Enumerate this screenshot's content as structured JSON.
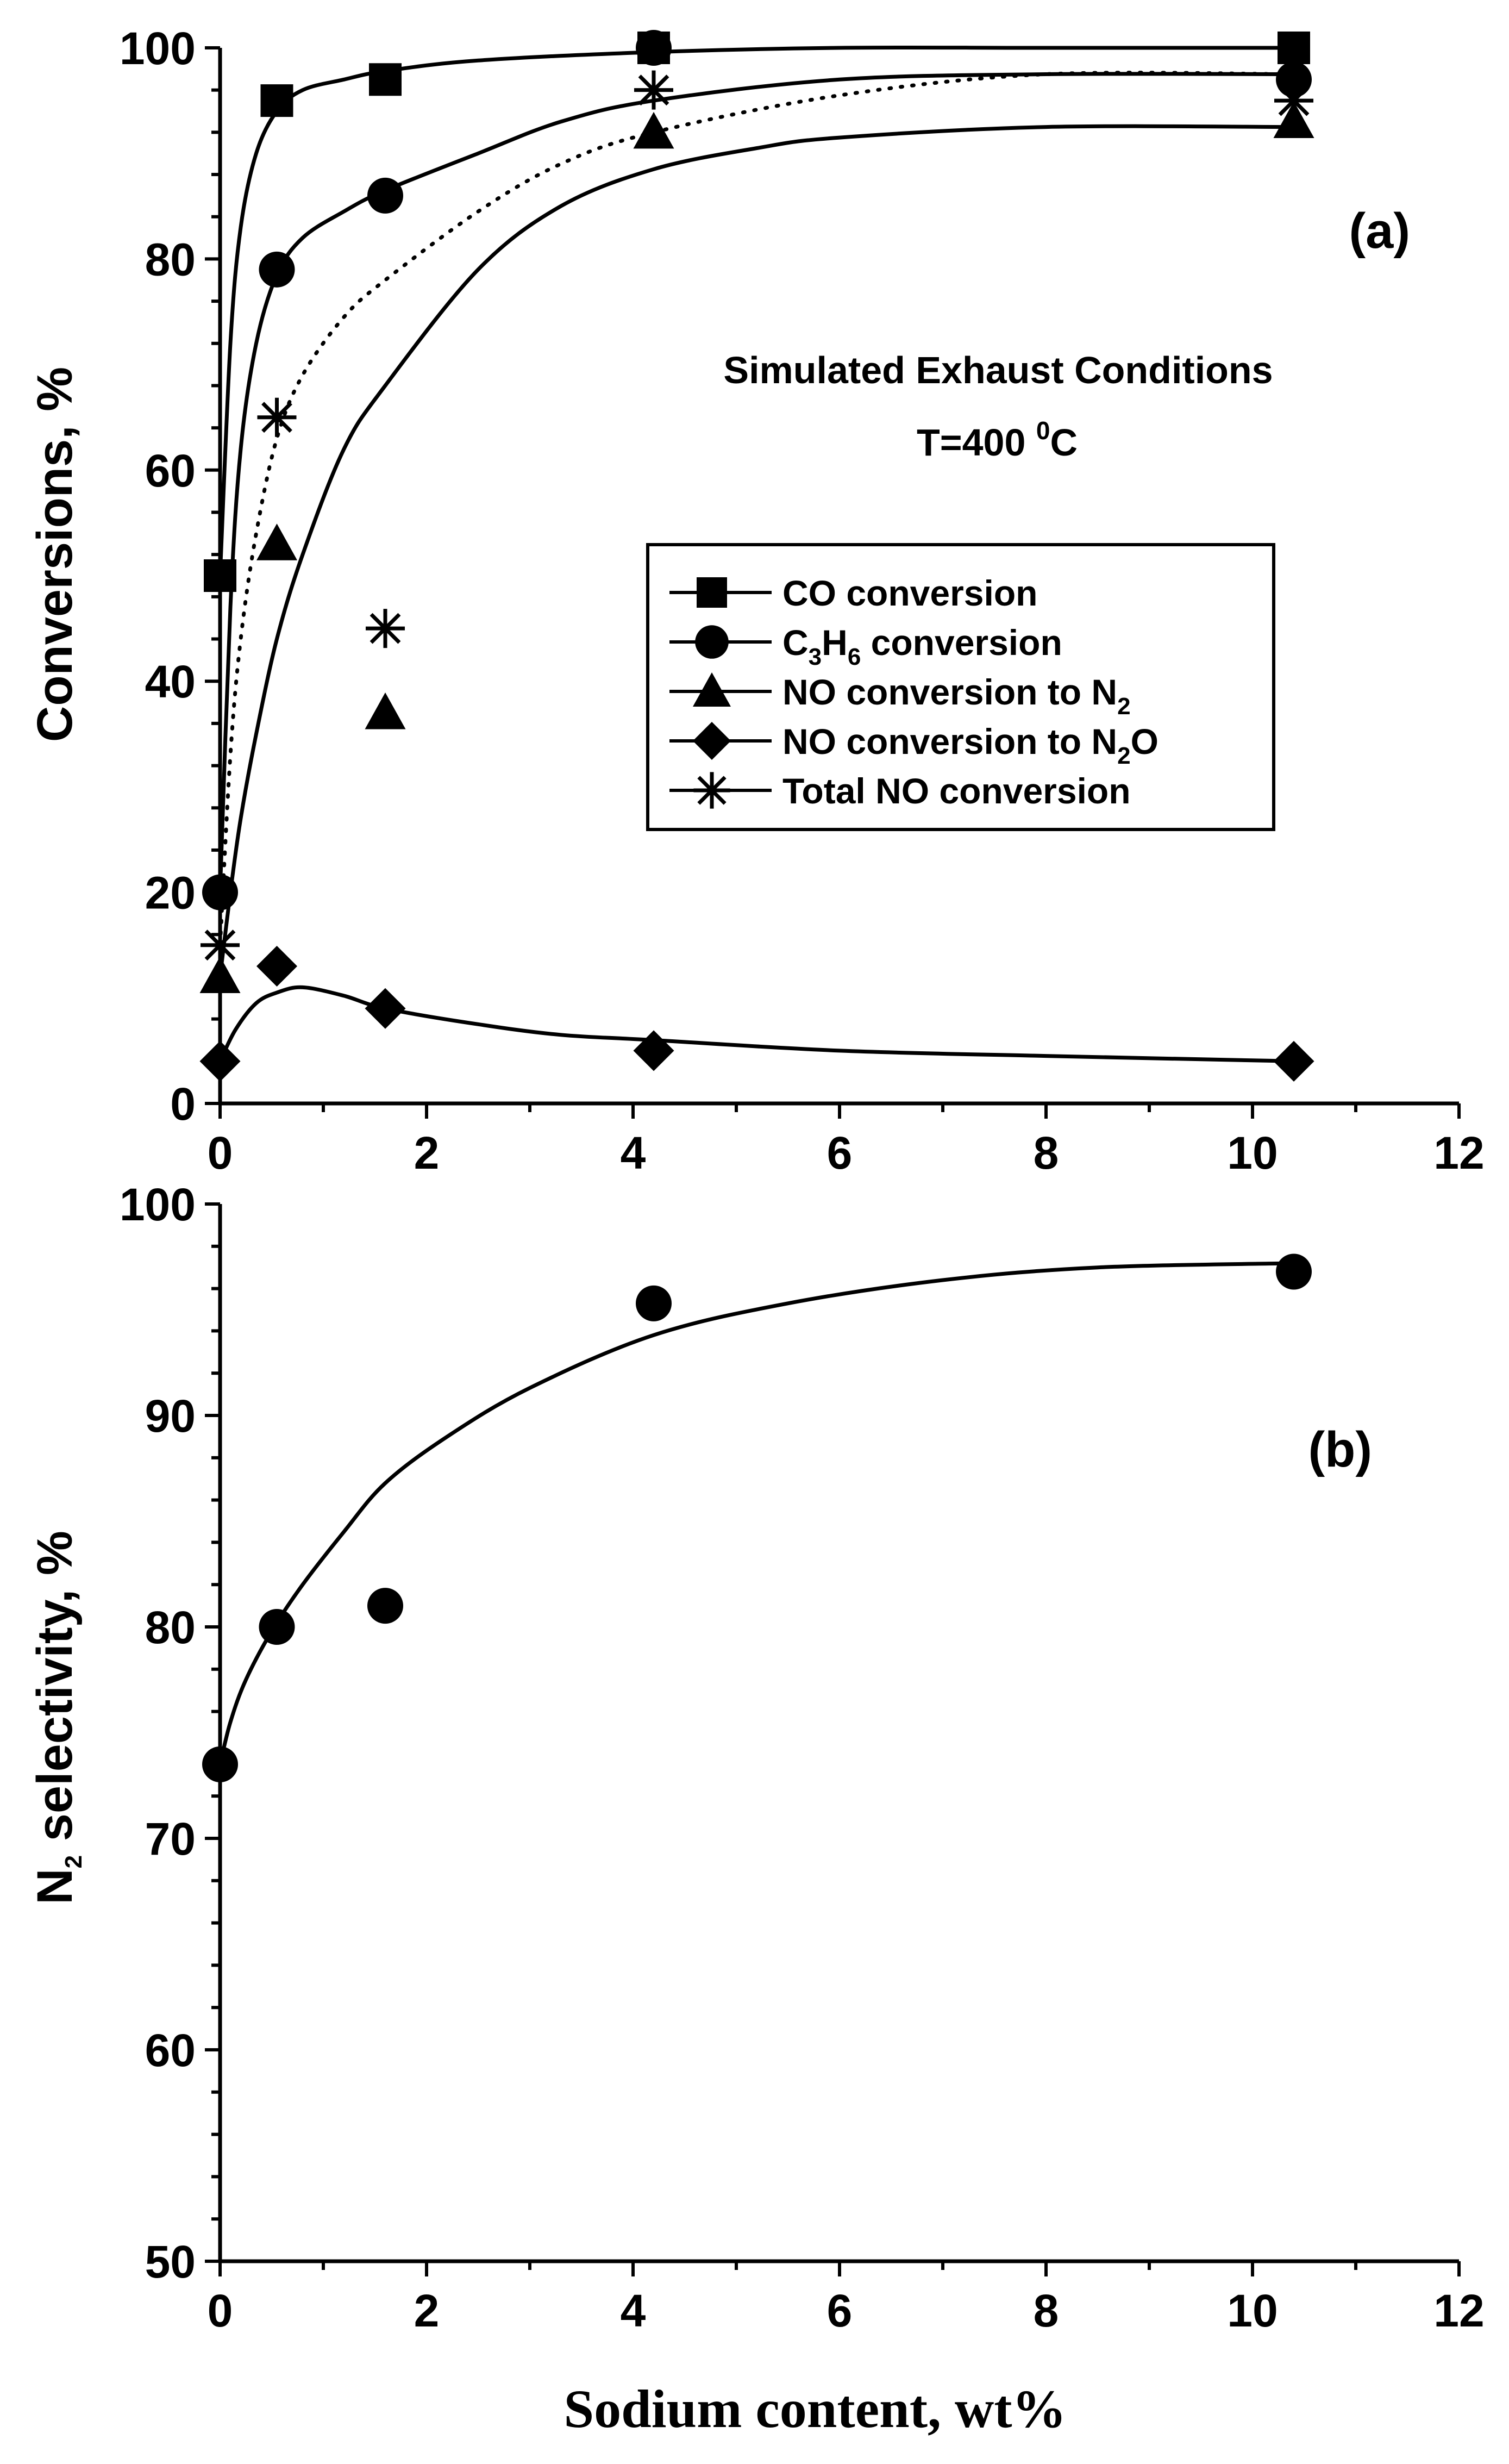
{
  "chart_data": [
    {
      "panel": "a",
      "type": "scatter",
      "panel_label": "(a)",
      "annotation_line1": "Simulated Exhaust Conditions",
      "annotation_line2_prefix": "T=400 ",
      "annotation_line2_sup": "0",
      "annotation_line2_suffix": "C",
      "ylabel": "Conversions, %",
      "xlim": [
        0,
        12
      ],
      "ylim": [
        0,
        100
      ],
      "xticks": [
        0,
        2,
        4,
        6,
        8,
        10,
        12
      ],
      "yticks": [
        0,
        20,
        40,
        60,
        80,
        100
      ],
      "legend": [
        {
          "marker": "square",
          "parts": [
            [
              "CO conversion",
              ""
            ]
          ]
        },
        {
          "marker": "circle",
          "parts": [
            [
              "C",
              ""
            ],
            [
              "3",
              "sub"
            ],
            [
              "H",
              ""
            ],
            [
              "6",
              "sub"
            ],
            [
              " conversion",
              ""
            ]
          ]
        },
        {
          "marker": "triangle",
          "parts": [
            [
              "NO conversion to N",
              ""
            ],
            [
              "2",
              "sub"
            ]
          ]
        },
        {
          "marker": "diamond",
          "parts": [
            [
              "NO conversion to N",
              ""
            ],
            [
              "2",
              "sub"
            ],
            [
              "O",
              ""
            ]
          ]
        },
        {
          "marker": "asterisk",
          "parts": [
            [
              "Total NO conversion",
              ""
            ]
          ]
        }
      ],
      "series": [
        {
          "name": "CO conversion",
          "marker": "square",
          "x": [
            0,
            0.55,
            1.6,
            4.2,
            10.4
          ],
          "y": [
            50,
            95,
            97,
            100,
            100
          ]
        },
        {
          "name": "C3H6 conversion",
          "marker": "circle",
          "x": [
            0,
            0.55,
            1.6,
            4.2,
            10.4
          ],
          "y": [
            20,
            79,
            86,
            100,
            97
          ]
        },
        {
          "name": "NO conversion to N2",
          "marker": "triangle",
          "x": [
            0,
            0.55,
            1.6,
            4.2,
            10.4
          ],
          "y": [
            12,
            53,
            37,
            92,
            93
          ]
        },
        {
          "name": "NO conversion to N2O",
          "marker": "diamond",
          "x": [
            0,
            0.55,
            1.6,
            4.2,
            10.4
          ],
          "y": [
            4,
            13,
            9,
            5,
            4
          ]
        },
        {
          "name": "Total NO conversion",
          "marker": "asterisk",
          "x": [
            0,
            0.55,
            1.6,
            4.2,
            10.4
          ],
          "y": [
            15,
            65,
            45,
            96,
            95
          ]
        }
      ],
      "fit_curves": [
        {
          "name": "CO fit",
          "style": "solid",
          "x": [
            0,
            0.1,
            0.2,
            0.35,
            0.55,
            0.8,
            1.2,
            1.6,
            2.5,
            4.2,
            6,
            8,
            10.4
          ],
          "y": [
            50,
            72,
            83,
            90,
            94,
            96,
            97,
            97.8,
            98.8,
            99.6,
            100,
            100,
            100
          ]
        },
        {
          "name": "C3H6 fit",
          "style": "solid",
          "x": [
            0,
            0.1,
            0.2,
            0.35,
            0.55,
            0.8,
            1.2,
            1.6,
            2.5,
            3.3,
            4.2,
            6,
            8,
            10.4
          ],
          "y": [
            20,
            47,
            62,
            72,
            78.5,
            82,
            84.5,
            86.5,
            90,
            93,
            95,
            97,
            97.5,
            97.5
          ]
        },
        {
          "name": "NO to N2 fit",
          "style": "solid",
          "x": [
            0,
            0.1,
            0.2,
            0.35,
            0.55,
            0.8,
            1.2,
            1.6,
            2.5,
            3.3,
            4.2,
            5.2,
            6,
            8,
            10.4
          ],
          "y": [
            12,
            20,
            27,
            35,
            44,
            52,
            62,
            68,
            79,
            85,
            88.5,
            90.5,
            91.5,
            92.5,
            92.5
          ]
        },
        {
          "name": "Total NO fit",
          "style": "dotted",
          "x": [
            0,
            0.1,
            0.2,
            0.35,
            0.55,
            0.8,
            1.2,
            1.6,
            2.5,
            3.3,
            4.2,
            6,
            8,
            10.4
          ],
          "y": [
            15,
            33,
            44,
            54,
            63,
            69,
            74.5,
            78,
            84.5,
            89,
            92,
            95.5,
            97.5,
            97.5
          ]
        },
        {
          "name": "NO to N2O fit",
          "style": "solid",
          "x": [
            0,
            0.15,
            0.35,
            0.55,
            0.8,
            1.2,
            1.6,
            2.5,
            3.3,
            4.2,
            6,
            8,
            10.4
          ],
          "y": [
            4,
            7,
            9.5,
            10.5,
            11,
            10.2,
            9,
            7.5,
            6.5,
            6,
            5,
            4.5,
            4
          ]
        }
      ]
    },
    {
      "panel": "b",
      "type": "scatter",
      "panel_label": "(b)",
      "ylabel_parts": [
        [
          "N",
          ""
        ],
        [
          "2",
          "sub"
        ],
        [
          " selectivity, %",
          ""
        ]
      ],
      "xlabel": "Sodium content, wt%",
      "xlim": [
        0,
        12
      ],
      "ylim": [
        50,
        100
      ],
      "xticks": [
        0,
        2,
        4,
        6,
        8,
        10,
        12
      ],
      "yticks": [
        50,
        60,
        70,
        80,
        90,
        100
      ],
      "series": [
        {
          "name": "N2 selectivity",
          "marker": "circle",
          "x": [
            0,
            0.55,
            1.6,
            4.2,
            10.4
          ],
          "y": [
            73.5,
            80,
            81,
            95.3,
            96.8
          ]
        }
      ],
      "fit_curves": [
        {
          "name": "N2 selectivity fit",
          "style": "solid",
          "x": [
            0,
            0.1,
            0.25,
            0.5,
            0.8,
            1.2,
            1.6,
            2.2,
            3,
            4.2,
            5.5,
            7,
            8.5,
            10.4
          ],
          "y": [
            73.5,
            75.5,
            77.5,
            79.8,
            82,
            84.5,
            86.8,
            89,
            91.3,
            93.8,
            95.3,
            96.4,
            97,
            97.2
          ]
        }
      ]
    }
  ]
}
